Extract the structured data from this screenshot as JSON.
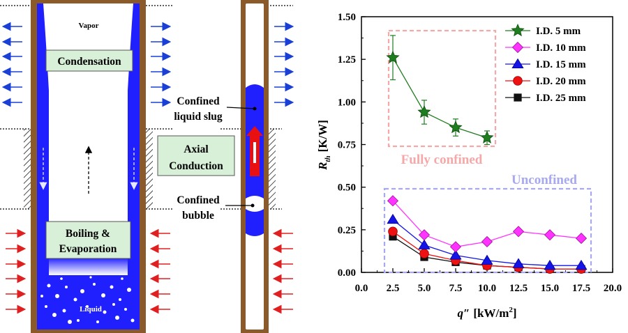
{
  "panel_left": {
    "vapor_label": "Vapor",
    "condensation_label": "Condensation",
    "boiling_label_line1": "Boiling &",
    "boiling_label_line2": "Evaporation",
    "liquid_label": "Liquid",
    "colors": {
      "tube_wall": "#8a5a2b",
      "liquid": "#2020ff",
      "box_fill": "#d8f0d8",
      "arrow_out": "#1a3fd6",
      "arrow_in": "#e02020"
    }
  },
  "panel_middle": {
    "slug_label_line1": "Confined",
    "slug_label_line2": "liquid slug",
    "axial_label_line1": "Axial",
    "axial_label_line2": "Conduction",
    "bubble_label_line1": "Confined",
    "bubble_label_line2": "bubble"
  },
  "chart_data": {
    "type": "line",
    "xlabel_main": "q″",
    "xlabel_unit": "[kW/m",
    "xlabel_exp": "2",
    "xlabel_close": "]",
    "ylabel_main": "R",
    "ylabel_sub": "th",
    "ylabel_unit": "[K/W]",
    "xlim": [
      0.0,
      20.0
    ],
    "ylim": [
      0.0,
      1.5
    ],
    "xticks": [
      "0.0",
      "2.5",
      "5.0",
      "7.5",
      "10.0",
      "12.5",
      "15.0",
      "17.5",
      "20.0"
    ],
    "yticks": [
      "0.00",
      "0.25",
      "0.50",
      "0.75",
      "1.00",
      "1.25",
      "1.50"
    ],
    "legend_position": "top-right",
    "annotations": {
      "fully_confined": "Fully confined",
      "unconfined": "Unconfined"
    },
    "series": [
      {
        "name": "I.D. 5 mm",
        "marker": "star",
        "color": "#1e7d1e",
        "x": [
          2.5,
          5.0,
          7.5,
          10.0
        ],
        "y": [
          1.26,
          0.94,
          0.85,
          0.79
        ],
        "err": [
          0.13,
          0.07,
          0.05,
          0.04
        ]
      },
      {
        "name": "I.D. 10 mm",
        "marker": "diamond",
        "color": "#ff33ff",
        "x": [
          2.5,
          5.0,
          7.5,
          10.0,
          12.5,
          15.0,
          17.5
        ],
        "y": [
          0.42,
          0.22,
          0.15,
          0.18,
          0.24,
          0.22,
          0.2
        ]
      },
      {
        "name": "I.D. 15 mm",
        "marker": "triangle",
        "color": "#1414e6",
        "x": [
          2.5,
          5.0,
          7.5,
          10.0,
          12.5,
          15.0,
          17.5
        ],
        "y": [
          0.31,
          0.16,
          0.1,
          0.07,
          0.05,
          0.04,
          0.04
        ]
      },
      {
        "name": "I.D. 20 mm",
        "marker": "circle",
        "color": "#ee1111",
        "x": [
          2.5,
          5.0,
          7.5,
          10.0,
          12.5,
          15.0,
          17.5
        ],
        "y": [
          0.24,
          0.11,
          0.07,
          0.04,
          0.03,
          0.02,
          0.02
        ]
      },
      {
        "name": "I.D. 25 mm",
        "marker": "square",
        "color": "#111111",
        "x": [
          2.5,
          5.0,
          7.5,
          10.0,
          12.5,
          15.0,
          17.5
        ],
        "y": [
          0.21,
          0.09,
          0.06,
          0.04,
          0.03,
          0.02,
          0.02
        ]
      }
    ]
  }
}
